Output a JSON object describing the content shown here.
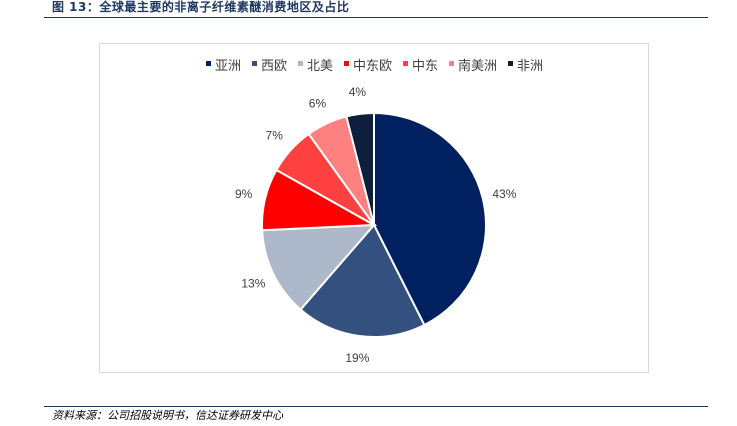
{
  "figure": {
    "title": "图 13：全球最主要的非离子纤维素醚消费地区及占比",
    "source": "资料来源：公司招股说明书，信达证券研发中心"
  },
  "chart_data": {
    "type": "pie",
    "title": "",
    "legend_position": "top",
    "start_angle_deg": 0,
    "direction": "clockwise",
    "categories": [
      "亚洲",
      "西欧",
      "北美",
      "中东欧",
      "中东",
      "南美洲",
      "非洲"
    ],
    "values": [
      43,
      19,
      13,
      9,
      7,
      6,
      4
    ],
    "labels": [
      "43%",
      "19%",
      "13%",
      "9%",
      "7%",
      "6%",
      "4%"
    ],
    "colors": [
      "#002060",
      "#33507f",
      "#adb9ca",
      "#ff0000",
      "#ff4040",
      "#ff8080",
      "#0d1f3c"
    ]
  }
}
